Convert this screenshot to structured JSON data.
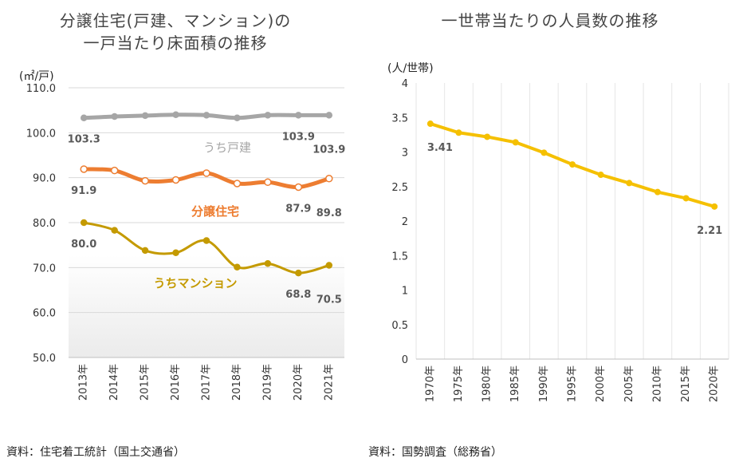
{
  "chart_data": [
    {
      "type": "line",
      "title": [
        "分譲住宅(戸建、マンション)の",
        "一戸当たり床面積の推移"
      ],
      "ylabel": "(㎡/戸)",
      "ylim": [
        50,
        110
      ],
      "yticks": [
        "50.0",
        "60.0",
        "70.0",
        "80.0",
        "90.0",
        "100.0",
        "110.0"
      ],
      "categories": [
        "2013年",
        "2014年",
        "2015年",
        "2016年",
        "2017年",
        "2018年",
        "2019年",
        "2020年",
        "2021年"
      ],
      "series": [
        {
          "name": "うち戸建",
          "color": "#a6a6a6",
          "values": [
            103.3,
            103.6,
            103.8,
            104.0,
            103.9,
            103.3,
            103.9,
            103.9,
            103.9
          ],
          "labels": [
            {
              "index": 0,
              "text": "103.3"
            },
            {
              "index": 7,
              "text": "103.9"
            },
            {
              "index": 8,
              "text": "103.9"
            }
          ]
        },
        {
          "name": "分譲住宅",
          "color": "#ed7d31",
          "values": [
            91.9,
            91.6,
            89.3,
            89.5,
            91.0,
            88.7,
            89.0,
            87.9,
            89.8
          ],
          "labels": [
            {
              "index": 0,
              "text": "91.9"
            },
            {
              "index": 7,
              "text": "87.9"
            },
            {
              "index": 8,
              "text": "89.8"
            }
          ]
        },
        {
          "name": "うちマンション",
          "color": "#c49a00",
          "values": [
            80.0,
            78.3,
            73.8,
            73.3,
            76.0,
            70.1,
            70.9,
            68.8,
            70.5
          ],
          "labels": [
            {
              "index": 0,
              "text": "80.0"
            },
            {
              "index": 7,
              "text": "68.8"
            },
            {
              "index": 8,
              "text": "70.5"
            }
          ]
        }
      ],
      "source": "資料：住宅着工統計（国土交通省）"
    },
    {
      "type": "line",
      "title": [
        "一世帯当たりの人員数の推移"
      ],
      "ylabel": "(人/世帯)",
      "ylim": [
        0,
        4
      ],
      "yticks": [
        "0",
        "0.5",
        "1",
        "1.5",
        "2",
        "2.5",
        "3",
        "3.5",
        "4"
      ],
      "categories": [
        "1970年",
        "1975年",
        "1980年",
        "1985年",
        "1990年",
        "1995年",
        "2000年",
        "2005年",
        "2010年",
        "2015年",
        "2020年"
      ],
      "series": [
        {
          "name": "一世帯当たりの人員数",
          "color": "#f5c000",
          "values": [
            3.41,
            3.28,
            3.22,
            3.14,
            2.99,
            2.82,
            2.67,
            2.55,
            2.42,
            2.33,
            2.21
          ],
          "labels": [
            {
              "index": 0,
              "text": "3.41"
            },
            {
              "index": 10,
              "text": "2.21"
            }
          ]
        }
      ],
      "source": "資料：国勢調査（総務省）"
    }
  ]
}
